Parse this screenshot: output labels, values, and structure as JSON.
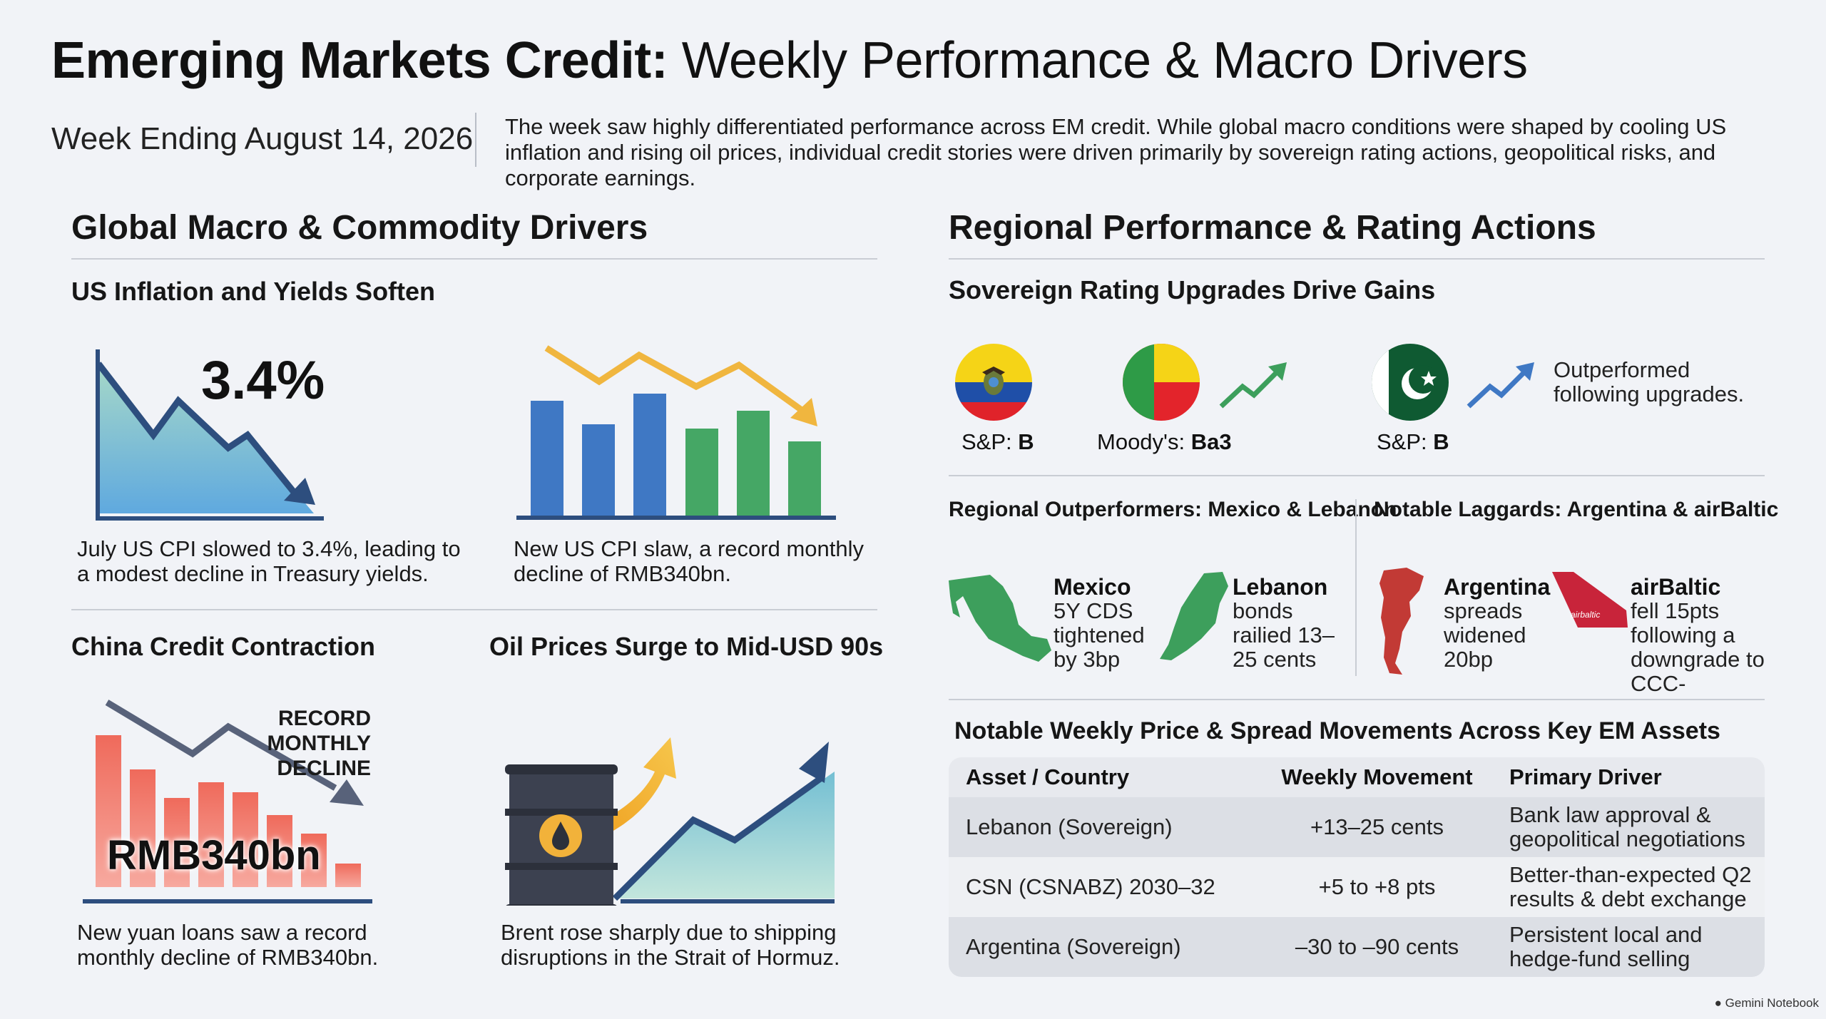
{
  "header": {
    "title_bold": "Emerging Markets Credit:",
    "title_rest": " Weekly Performance & Macro Drivers",
    "week": "Week Ending August 14, 2026",
    "intro": "The week saw highly differentiated performance across EM credit. While global macro conditions were shaped by cooling US inflation and rising oil prices, individual credit stories were driven primarily by sovereign rating actions, geopolitical risks, and corporate earnings."
  },
  "macro": {
    "title": "Global Macro & Commodity Drivers",
    "us_inflation": {
      "title": "US Inflation and Yields Soften",
      "big_value": "3.4%",
      "caption_left": "July US CPI slowed to 3.4%, leading to a modest decline in Treasury yields.",
      "caption_right": "New US CPI slaw, a record monthly decline of RMB340bn."
    },
    "china": {
      "title": "China Credit Contraction",
      "annotation": "RECORD MONTHLY DECLINE",
      "big_value": "RMB340bn",
      "caption": "New yuan loans saw a record monthly decline of RMB340bn."
    },
    "oil": {
      "title": "Oil Prices Surge to Mid-USD 90s",
      "caption": "Brent rose sharply due to shipping disruptions in the Strait of Hormuz."
    }
  },
  "regional": {
    "title": "Regional Performance & Rating Actions",
    "upgrades": {
      "title": "Sovereign Rating Upgrades Drive Gains",
      "ecuador": {
        "agency": "S&P: ",
        "rating": "B"
      },
      "benin": {
        "agency": "Moody's: ",
        "rating": "Ba3"
      },
      "pakistan": {
        "agency": "S&P: ",
        "rating": "B"
      },
      "note": "Outperformed following upgrades."
    },
    "outperformers": {
      "title": "Regional Outperformers: Mexico & Lebanon",
      "mexico": {
        "name": "Mexico",
        "text": "5Y CDS tightened by 3bp"
      },
      "lebanon": {
        "name": "Lebanon",
        "text": "bonds railied 13–25 cents"
      }
    },
    "laggards": {
      "title": "Notable Laggards: Argentina & airBaltic",
      "argentina": {
        "name": "Argentina",
        "text": "spreads widened 20bp"
      },
      "airbaltic": {
        "name": "airBaltic",
        "text": "fell 15pts following a downgrade to CCC-",
        "tail_text": "airbaltic"
      }
    }
  },
  "table": {
    "title": "Notable Weekly Price & Spread Movements Across Key EM Assets",
    "headers": [
      "Asset / Country",
      "Weekly Movement",
      "Primary Driver"
    ],
    "rows": [
      {
        "asset": "Lebanon (Sovereign)",
        "movement": "+13–25 cents",
        "driver": "Bank law approval & geopolitical negotiations"
      },
      {
        "asset": "CSN (CSNABZ) 2030–32",
        "movement": "+5 to +8 pts",
        "driver": "Better-than-expected Q2 results & debt exchange"
      },
      {
        "asset": "Argentina (Sovereign)",
        "movement": "–30 to –90 cents",
        "driver": "Persistent local and hedge-fund selling"
      }
    ]
  },
  "brand": "Gemini Notebook",
  "colors": {
    "navy": "#2d4e7e",
    "blue_bar": "#3f78c4",
    "green_bar": "#45a765",
    "red_bar": "#e05a4f",
    "gold_arrow": "#f0b63f",
    "map_green": "#3d9f5c",
    "map_red": "#c23a35",
    "teal_fill": "#8fc9d8"
  }
}
